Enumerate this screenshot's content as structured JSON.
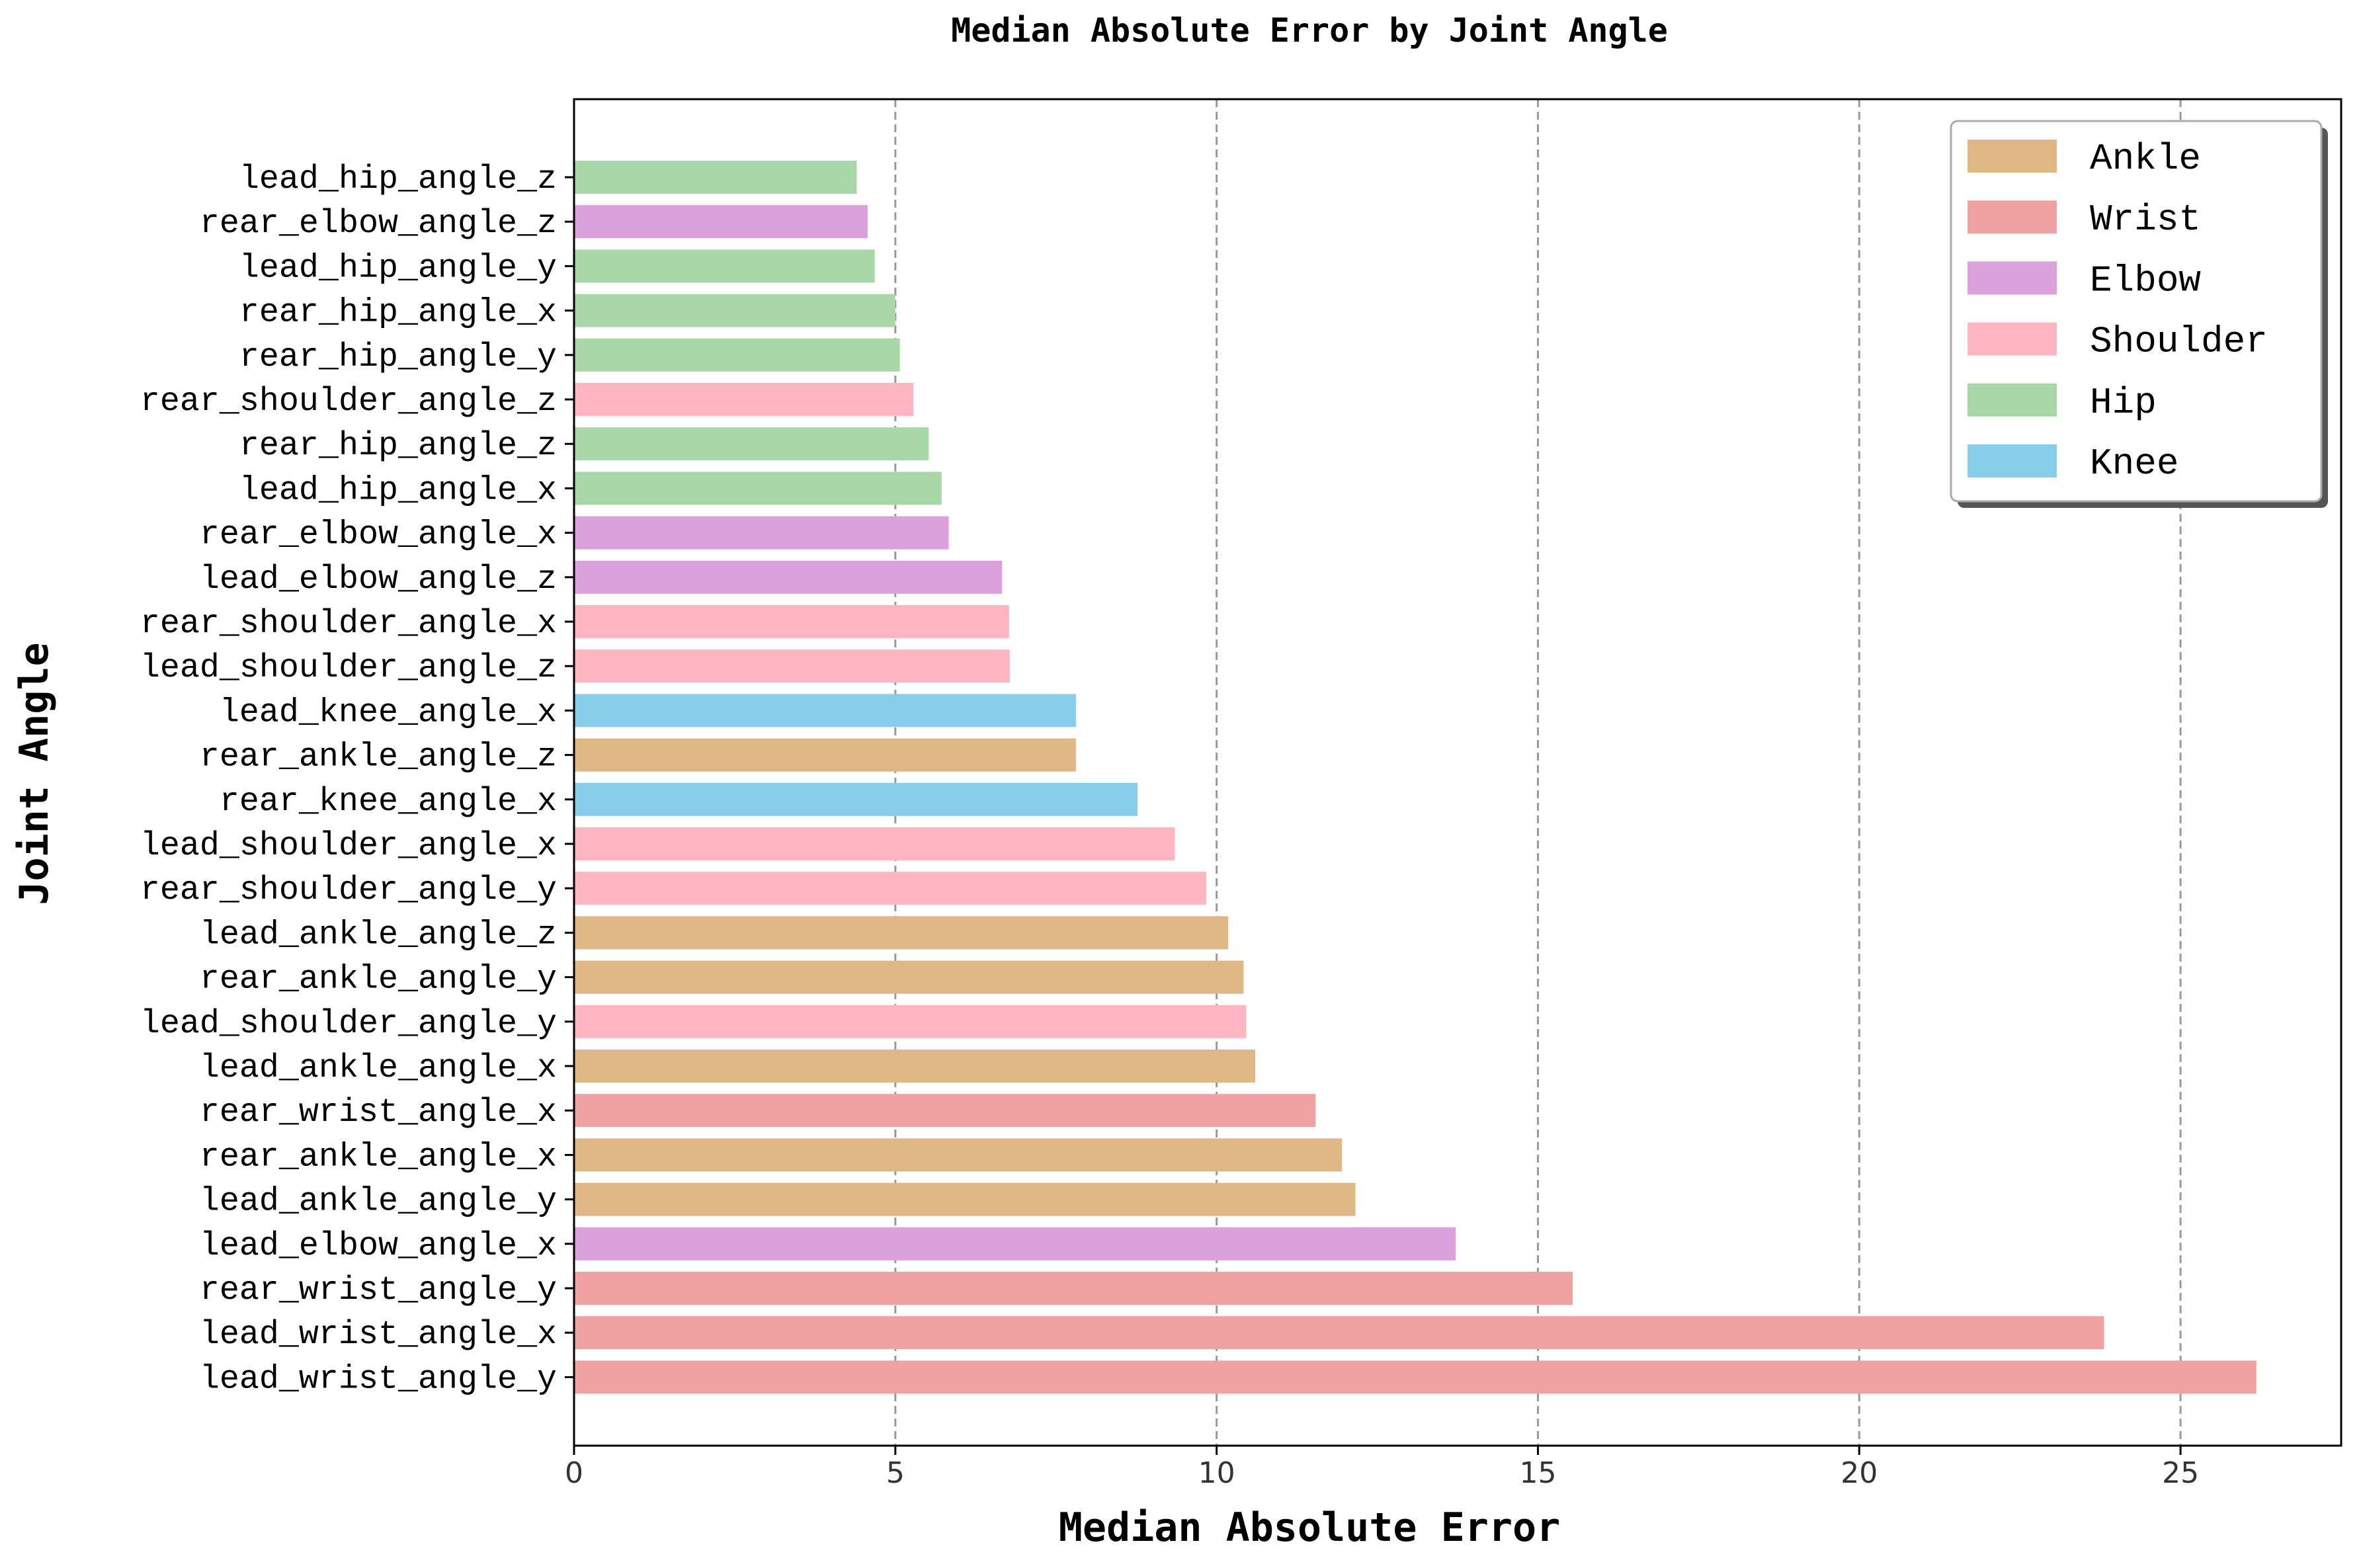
{
  "chart_data": {
    "type": "bar",
    "orientation": "horizontal",
    "title": "Median Absolute Error by Joint Angle",
    "xlabel": "Median Absolute Error",
    "ylabel": "Joint Angle",
    "xlim": [
      0,
      27.5
    ],
    "xticks": [
      0,
      5,
      10,
      15,
      20,
      25
    ],
    "grid": "x-dashed",
    "legend_position": "top-right",
    "legend": [
      {
        "name": "Ankle",
        "color": "#dfb886"
      },
      {
        "name": "Wrist",
        "color": "#f0a1a1"
      },
      {
        "name": "Elbow",
        "color": "#dca0dd"
      },
      {
        "name": "Shoulder",
        "color": "#ffb6c1"
      },
      {
        "name": "Hip",
        "color": "#a8d8a8"
      },
      {
        "name": "Knee",
        "color": "#87ceea"
      }
    ],
    "bars": [
      {
        "label": "lead_hip_angle_z",
        "value": 4.4,
        "group": "Hip"
      },
      {
        "label": "rear_elbow_angle_z",
        "value": 4.57,
        "group": "Elbow"
      },
      {
        "label": "lead_hip_angle_y",
        "value": 4.68,
        "group": "Hip"
      },
      {
        "label": "rear_hip_angle_x",
        "value": 5.0,
        "group": "Hip"
      },
      {
        "label": "rear_hip_angle_y",
        "value": 5.07,
        "group": "Hip"
      },
      {
        "label": "rear_shoulder_angle_z",
        "value": 5.28,
        "group": "Shoulder"
      },
      {
        "label": "rear_hip_angle_z",
        "value": 5.52,
        "group": "Hip"
      },
      {
        "label": "lead_hip_angle_x",
        "value": 5.72,
        "group": "Hip"
      },
      {
        "label": "rear_elbow_angle_x",
        "value": 5.83,
        "group": "Elbow"
      },
      {
        "label": "lead_elbow_angle_z",
        "value": 6.66,
        "group": "Elbow"
      },
      {
        "label": "rear_shoulder_angle_x",
        "value": 6.77,
        "group": "Shoulder"
      },
      {
        "label": "lead_shoulder_angle_z",
        "value": 6.78,
        "group": "Shoulder"
      },
      {
        "label": "lead_knee_angle_x",
        "value": 7.81,
        "group": "Knee"
      },
      {
        "label": "rear_ankle_angle_z",
        "value": 7.81,
        "group": "Ankle"
      },
      {
        "label": "rear_knee_angle_x",
        "value": 8.77,
        "group": "Knee"
      },
      {
        "label": "lead_shoulder_angle_x",
        "value": 9.35,
        "group": "Shoulder"
      },
      {
        "label": "rear_shoulder_angle_y",
        "value": 9.84,
        "group": "Shoulder"
      },
      {
        "label": "lead_ankle_angle_z",
        "value": 10.18,
        "group": "Ankle"
      },
      {
        "label": "rear_ankle_angle_y",
        "value": 10.42,
        "group": "Ankle"
      },
      {
        "label": "lead_shoulder_angle_y",
        "value": 10.46,
        "group": "Shoulder"
      },
      {
        "label": "lead_ankle_angle_x",
        "value": 10.6,
        "group": "Ankle"
      },
      {
        "label": "rear_wrist_angle_x",
        "value": 11.54,
        "group": "Wrist"
      },
      {
        "label": "rear_ankle_angle_x",
        "value": 11.95,
        "group": "Ankle"
      },
      {
        "label": "lead_ankle_angle_y",
        "value": 12.16,
        "group": "Ankle"
      },
      {
        "label": "lead_elbow_angle_x",
        "value": 13.72,
        "group": "Elbow"
      },
      {
        "label": "rear_wrist_angle_y",
        "value": 15.54,
        "group": "Wrist"
      },
      {
        "label": "lead_wrist_angle_x",
        "value": 23.81,
        "group": "Wrist"
      },
      {
        "label": "lead_wrist_angle_y",
        "value": 26.18,
        "group": "Wrist"
      }
    ]
  }
}
